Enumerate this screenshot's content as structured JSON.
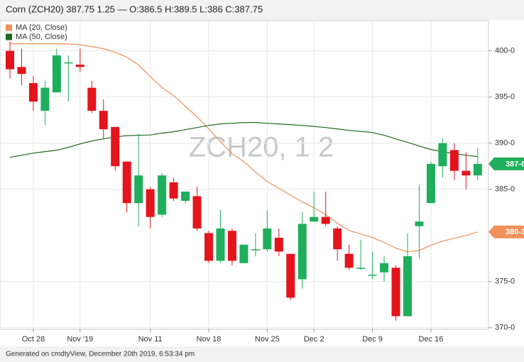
{
  "chart_data": {
    "type": "candlestick",
    "title": "Corn (ZCH20) 387.75 1.25 — O:386.5 H:389.5 L:386 C:387.75",
    "watermark": "ZCH20, 1 2",
    "footer": "Generated on cmdtyView, December 20th 2019, 6:53:34 pm",
    "categories": [
      null,
      null,
      "Oct 28",
      null,
      null,
      null,
      "Nov '19",
      null,
      null,
      null,
      null,
      null,
      "Nov 11",
      null,
      null,
      null,
      null,
      "Nov 18",
      null,
      null,
      null,
      null,
      "Nov 25",
      null,
      null,
      null,
      "Dec 2",
      null,
      null,
      null,
      null,
      "Dec 9",
      null,
      null,
      null,
      null,
      "Dec 16",
      null,
      null,
      null,
      null
    ],
    "open": [
      400,
      398.25,
      396.5,
      393.5,
      395.5,
      398.75,
      398.5,
      396,
      393.5,
      391.75,
      388,
      383.5,
      385,
      382.25,
      385.75,
      383.75,
      384.25,
      380.25,
      377.25,
      380.5,
      377,
      378.5,
      378.5,
      379.75,
      378,
      375.25,
      381.5,
      382,
      380.75,
      378,
      376.5,
      375.75,
      376,
      376.5,
      371.25,
      381,
      383.5,
      387.5,
      389.25,
      387,
      386.5
    ],
    "high": [
      401,
      400.25,
      397.25,
      396.75,
      400.25,
      399.5,
      400.25,
      396.75,
      394.75,
      391.75,
      388,
      391,
      385.25,
      386.75,
      386.25,
      384.75,
      385.25,
      380.5,
      382.75,
      380.75,
      379,
      380.25,
      382.75,
      380.75,
      378,
      382.5,
      384.75,
      384.75,
      381,
      379,
      379.5,
      378.25,
      377.75,
      376.75,
      380.25,
      385.5,
      388,
      390.5,
      390,
      389,
      389.5
    ],
    "low": [
      397,
      396.25,
      393.5,
      392,
      395.5,
      394.5,
      397.75,
      393.25,
      390.5,
      387,
      382.5,
      381,
      380.75,
      382,
      383.75,
      383.5,
      380.5,
      377,
      377,
      376.75,
      377,
      377.75,
      378.25,
      377.75,
      373,
      374.25,
      381.5,
      381,
      377.25,
      376.25,
      376.25,
      375.25,
      375,
      370.75,
      371.25,
      377.5,
      383.5,
      386.25,
      386,
      385,
      386
    ],
    "close": [
      398,
      397.5,
      394.5,
      396,
      399.5,
      398.75,
      398.25,
      393.5,
      391.5,
      387.5,
      383.5,
      386.5,
      382,
      386.5,
      384,
      384.75,
      380.75,
      377.25,
      380.75,
      377.25,
      379,
      378.5,
      380.75,
      378.25,
      373.25,
      381.25,
      382,
      381.25,
      378.5,
      376.5,
      376.5,
      375.75,
      377,
      371.25,
      377.75,
      381.5,
      387.75,
      390,
      387,
      386.5,
      387.75
    ],
    "up_color": "#1fae5b",
    "down_color": "#e3141b",
    "last_price_label": {
      "value": 387.75,
      "label": "387-6"
    },
    "series": [
      {
        "name": "MA (20, Close)",
        "color": "#f0915a",
        "type": "line",
        "values": [
          400.77,
          400.77,
          400.77,
          400.77,
          400.77,
          400.73,
          400.65,
          400.46,
          400.23,
          399.85,
          399.31,
          398.46,
          397.23,
          396,
          395.15,
          394,
          392.85,
          391.54,
          390.15,
          388.85,
          388,
          386.85,
          385.85,
          385.08,
          384.38,
          383.62,
          383,
          382.23,
          381.31,
          380.54,
          380.15,
          379.77,
          379.23,
          378.62,
          378.23,
          378.38,
          378.92,
          379.38,
          379.69,
          380,
          380.375
        ],
        "last_label": "380-3"
      },
      {
        "name": "MA (50, Close)",
        "color": "#1f6b1f",
        "type": "line",
        "values": [
          388.46,
          388.69,
          388.92,
          389.08,
          389.23,
          389.54,
          389.92,
          390.23,
          390.46,
          390.69,
          390.81,
          390.85,
          390.88,
          391.08,
          391.23,
          391.46,
          391.69,
          391.92,
          392.08,
          392.15,
          392.23,
          392.23,
          392.15,
          392.08,
          392,
          391.92,
          391.81,
          391.69,
          391.54,
          391.38,
          391.27,
          391.15,
          390.85,
          390.46,
          390.08,
          389.69,
          389.31,
          389.08,
          388.85,
          388.69,
          388.54
        ]
      }
    ],
    "ylim": [
      369.9,
      403.2
    ],
    "yticks": [
      {
        "value": 370,
        "label": "370-0"
      },
      {
        "value": 375,
        "label": "375-0"
      },
      {
        "value": 385,
        "label": "385-0"
      },
      {
        "value": 390,
        "label": "390-0"
      },
      {
        "value": 395,
        "label": "395-0"
      },
      {
        "value": 400,
        "label": "400-0"
      }
    ],
    "grid": true,
    "legend": "top-left"
  }
}
